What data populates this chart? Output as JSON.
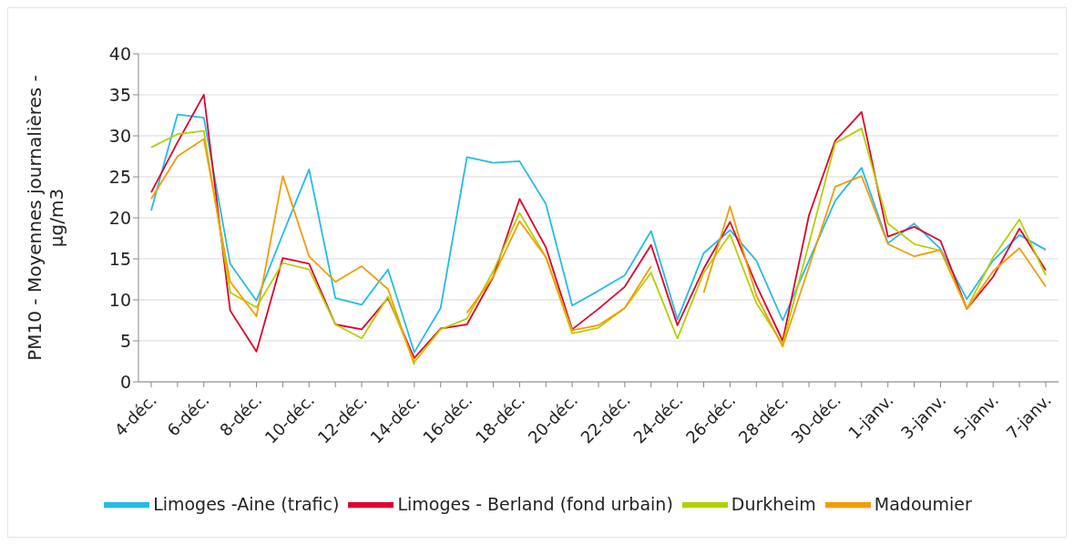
{
  "chart_data": {
    "type": "line",
    "ylabel": "PM10 - Moyennes journalières - µg/m3",
    "categories": [
      "4-déc.",
      null,
      "6-déc.",
      null,
      "8-déc.",
      null,
      "10-déc.",
      null,
      "12-déc.",
      null,
      "14-déc.",
      null,
      "16-déc.",
      null,
      "18-déc.",
      null,
      "20-déc.",
      null,
      "22-déc.",
      null,
      "24-déc.",
      null,
      "26-déc.",
      null,
      "28-déc.",
      null,
      "30-déc.",
      null,
      "1-janv.",
      null,
      "3-janv.",
      null,
      "5-janv.",
      null,
      "7-janv."
    ],
    "series": [
      {
        "name": "Limoges -Aine (trafic)",
        "color": "#23bce8",
        "values": [
          20.9,
          32.6,
          32.2,
          14.4,
          9.9,
          18,
          25.9,
          10.2,
          9.4,
          13.7,
          3.6,
          9.0,
          27.4,
          26.7,
          26.9,
          21.7,
          9.3,
          11.1,
          13.0,
          18.4,
          7.6,
          15.7,
          18.5,
          14.8,
          7.5,
          14.8,
          22.1,
          26.1,
          16.9,
          19.3,
          16.2,
          10.1,
          14.8,
          17.9,
          16.1
        ]
      },
      {
        "name": "Limoges - Berland (fond urbain)",
        "color": "#e0002c",
        "values": [
          23.1,
          29.2,
          35,
          8.7,
          3.7,
          15.1,
          14.4,
          7.0,
          6.4,
          10.2,
          2.9,
          6.5,
          7.0,
          12.8,
          22.3,
          16.4,
          6.4,
          8.9,
          11.6,
          16.7,
          6.9,
          13.8,
          19.5,
          11.8,
          5.0,
          20.3,
          29.4,
          32.9,
          17.7,
          18.9,
          17.2,
          8.9,
          12.8,
          18.7,
          13.6
        ]
      },
      {
        "name": "Durkheim",
        "color": "#b5cf00",
        "values": [
          28.6,
          30.2,
          30.6,
          10.9,
          9.1,
          14.5,
          13.7,
          7.0,
          5.3,
          10.4,
          2.4,
          6.4,
          7.7,
          13.5,
          20.6,
          15.2,
          5.9,
          6.6,
          9.0,
          13.3,
          5.3,
          13.3,
          18.0,
          9.6,
          4.6,
          16.9,
          29.1,
          30.9,
          19.3,
          16.8,
          16.0,
          8.9,
          15.2,
          19.8,
          13.0
        ]
      },
      {
        "name": "Madoumier",
        "color": "#f59c00",
        "values": [
          22.3,
          27.5,
          29.6,
          12.2,
          8.0,
          25.1,
          15.3,
          12.2,
          14.1,
          11.3,
          2.1,
          null,
          8.4,
          12.8,
          19.6,
          15.2,
          6.3,
          6.9,
          9.0,
          14.1,
          null,
          10.9,
          21.4,
          10.5,
          4.3,
          14.0,
          23.8,
          25.1,
          16.8,
          15.3,
          16.1,
          8.9,
          13.5,
          16.3,
          11.6
        ]
      }
    ],
    "ylim": [
      0,
      40
    ],
    "yticks": [
      0,
      5,
      10,
      15,
      20,
      25,
      30,
      35,
      40
    ],
    "grid": "y",
    "legend": "bottom",
    "line_style": "solid",
    "marker": "none"
  }
}
